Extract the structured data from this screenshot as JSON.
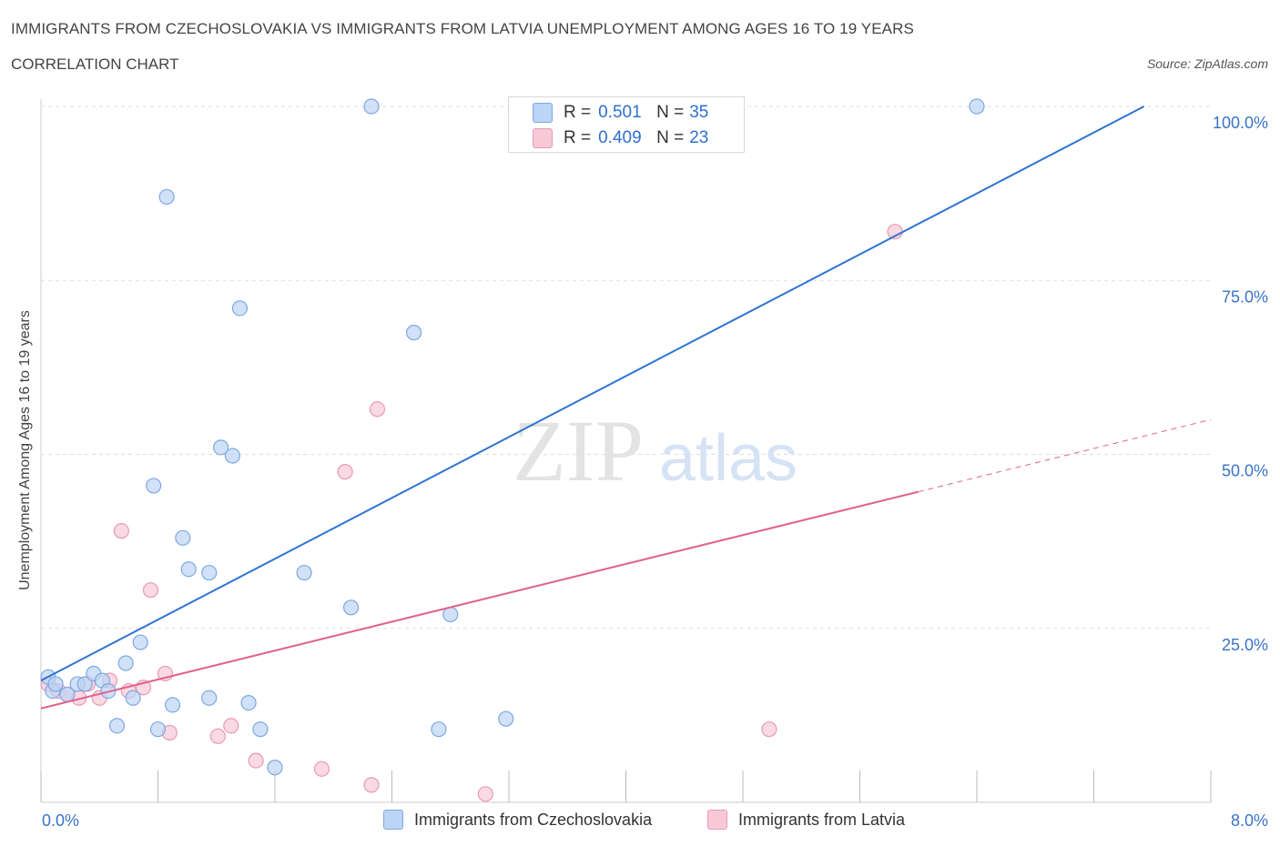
{
  "title": "IMMIGRANTS FROM CZECHOSLOVAKIA VS IMMIGRANTS FROM LATVIA UNEMPLOYMENT AMONG AGES 16 TO 19 YEARS",
  "subtitle": "CORRELATION CHART",
  "source": "Source: ZipAtlas.com",
  "legend": {
    "rows": [
      {
        "r_label": "R =",
        "r_value": "0.501",
        "n_label": "N =",
        "n_value": "35"
      },
      {
        "r_label": "R =",
        "r_value": "0.409",
        "n_label": "N =",
        "n_value": "23"
      }
    ]
  },
  "watermark": {
    "zip": "ZIP",
    "atlas": "atlas"
  },
  "colors": {
    "czech_fill": "#bcd4f5",
    "czech_stroke": "#7fa8e0",
    "czech_line": "#2f74d0",
    "latvia_fill": "#f7c9d7",
    "latvia_stroke": "#e99ab4",
    "latvia_line": "#e0638e",
    "grid": "#dddddd",
    "tick_label": "#3a73c8"
  },
  "chart_data": {
    "type": "scatter",
    "title": "IMMIGRANTS FROM CZECHOSLOVAKIA VS IMMIGRANTS FROM LATVIA UNEMPLOYMENT AMONG AGES 16 TO 19 YEARS",
    "subtitle": "CORRELATION CHART",
    "xlabel": "",
    "ylabel": "Unemployment Among Ages 16 to 19 years",
    "xlim": [
      0,
      8
    ],
    "ylim": [
      0,
      100
    ],
    "x_tick_labels": [
      "0.0%",
      "8.0%"
    ],
    "y_tick_labels": [
      "100.0%",
      "75.0%",
      "50.0%",
      "25.0%"
    ],
    "y_tick_values": [
      100,
      75,
      50,
      25
    ],
    "grid": true,
    "legend_position": "bottom",
    "series": [
      {
        "name": "Immigrants from Czechoslovakia",
        "r": 0.501,
        "n": 35,
        "trend": {
          "x0": 0,
          "y0": 17.5,
          "x1": 8,
          "y1": 105
        },
        "points": [
          {
            "x": 0.05,
            "y": 18.0
          },
          {
            "x": 0.08,
            "y": 16.0
          },
          {
            "x": 0.18,
            "y": 15.5
          },
          {
            "x": 0.25,
            "y": 17.0
          },
          {
            "x": 0.3,
            "y": 17.0
          },
          {
            "x": 0.36,
            "y": 18.5
          },
          {
            "x": 0.42,
            "y": 17.5
          },
          {
            "x": 0.46,
            "y": 16.0
          },
          {
            "x": 0.52,
            "y": 11.0
          },
          {
            "x": 0.58,
            "y": 20.0
          },
          {
            "x": 0.63,
            "y": 15.0
          },
          {
            "x": 0.68,
            "y": 23.0
          },
          {
            "x": 0.77,
            "y": 45.5
          },
          {
            "x": 0.8,
            "y": 10.5
          },
          {
            "x": 0.86,
            "y": 87.0
          },
          {
            "x": 0.9,
            "y": 14.0
          },
          {
            "x": 0.97,
            "y": 38.0
          },
          {
            "x": 1.01,
            "y": 33.5
          },
          {
            "x": 1.15,
            "y": 33.0
          },
          {
            "x": 1.15,
            "y": 15.0
          },
          {
            "x": 1.23,
            "y": 51.0
          },
          {
            "x": 1.31,
            "y": 49.8
          },
          {
            "x": 1.36,
            "y": 71.0
          },
          {
            "x": 1.42,
            "y": 14.3
          },
          {
            "x": 1.5,
            "y": 10.5
          },
          {
            "x": 1.6,
            "y": 5.0
          },
          {
            "x": 1.8,
            "y": 33.0
          },
          {
            "x": 2.12,
            "y": 28.0
          },
          {
            "x": 2.26,
            "y": 100.0
          },
          {
            "x": 2.55,
            "y": 67.5
          },
          {
            "x": 2.72,
            "y": 10.5
          },
          {
            "x": 2.8,
            "y": 27.0
          },
          {
            "x": 3.18,
            "y": 12.0
          },
          {
            "x": 6.4,
            "y": 100.0
          },
          {
            "x": 0.1,
            "y": 17.0
          }
        ]
      },
      {
        "name": "Immigrants from Latvia",
        "r": 0.409,
        "n": 23,
        "trend": {
          "x0": 0,
          "y0": 13.5,
          "x1": 8,
          "y1": 55,
          "solid_until_x": 6.0
        },
        "points": [
          {
            "x": 0.05,
            "y": 17.0
          },
          {
            "x": 0.12,
            "y": 16.0
          },
          {
            "x": 0.18,
            "y": 15.5
          },
          {
            "x": 0.26,
            "y": 15.0
          },
          {
            "x": 0.32,
            "y": 17.0
          },
          {
            "x": 0.4,
            "y": 15.0
          },
          {
            "x": 0.47,
            "y": 17.5
          },
          {
            "x": 0.55,
            "y": 39.0
          },
          {
            "x": 0.6,
            "y": 16.0
          },
          {
            "x": 0.7,
            "y": 16.5
          },
          {
            "x": 0.75,
            "y": 30.5
          },
          {
            "x": 0.85,
            "y": 18.5
          },
          {
            "x": 0.88,
            "y": 10.0
          },
          {
            "x": 1.21,
            "y": 9.5
          },
          {
            "x": 1.3,
            "y": 11.0
          },
          {
            "x": 1.47,
            "y": 6.0
          },
          {
            "x": 1.92,
            "y": 4.8
          },
          {
            "x": 2.08,
            "y": 47.5
          },
          {
            "x": 2.26,
            "y": 2.5
          },
          {
            "x": 2.3,
            "y": 56.5
          },
          {
            "x": 3.04,
            "y": 1.2
          },
          {
            "x": 4.98,
            "y": 10.5
          },
          {
            "x": 5.84,
            "y": 82.0
          }
        ]
      }
    ]
  }
}
